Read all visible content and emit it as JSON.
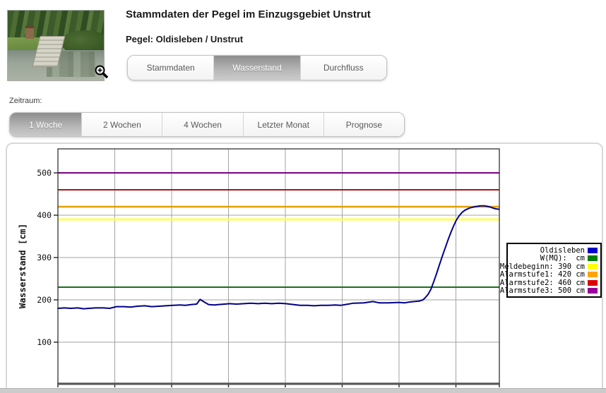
{
  "header": {
    "title": "Stammdaten der Pegel im Einzugsgebiet Unstrut",
    "subtitle": "Pegel: Oldisleben / Unstrut",
    "tabs": [
      {
        "label": "Stammdaten",
        "active": false
      },
      {
        "label": "Wasserstand",
        "active": true
      },
      {
        "label": "Durchfluss",
        "active": false
      }
    ]
  },
  "zeitraum": {
    "label": "Zeitraum:",
    "tabs": [
      {
        "label": "1 Woche",
        "active": true
      },
      {
        "label": "2 Wochen",
        "active": false
      },
      {
        "label": "4 Wochen",
        "active": false
      },
      {
        "label": "Letzter Monat",
        "active": false
      },
      {
        "label": "Prognose",
        "active": false
      }
    ]
  },
  "chart_data": {
    "type": "line",
    "title": "",
    "xlabel": "",
    "ylabel": "Wasserstand [cm]",
    "yticks": [
      100,
      200,
      300,
      400,
      500
    ],
    "ylim": [
      3,
      557
    ],
    "xlim_days": [
      0,
      7.76
    ],
    "x_gridline_interval_days": 1,
    "grid": true,
    "series": [
      {
        "name": "Oldisleben",
        "color": "#000088",
        "points": [
          [
            0.0,
            180
          ],
          [
            0.12,
            181
          ],
          [
            0.22,
            180
          ],
          [
            0.35,
            181
          ],
          [
            0.45,
            179
          ],
          [
            0.55,
            180
          ],
          [
            0.66,
            181
          ],
          [
            0.8,
            181
          ],
          [
            0.91,
            180
          ],
          [
            1.03,
            184
          ],
          [
            1.16,
            184
          ],
          [
            1.28,
            183
          ],
          [
            1.4,
            185
          ],
          [
            1.53,
            186
          ],
          [
            1.65,
            184
          ],
          [
            1.78,
            185
          ],
          [
            1.9,
            186
          ],
          [
            2.02,
            187
          ],
          [
            2.15,
            188
          ],
          [
            2.24,
            187
          ],
          [
            2.35,
            189
          ],
          [
            2.44,
            190
          ],
          [
            2.5,
            201
          ],
          [
            2.56,
            196
          ],
          [
            2.65,
            189
          ],
          [
            2.75,
            188
          ],
          [
            2.83,
            189
          ],
          [
            2.93,
            190
          ],
          [
            3.02,
            191
          ],
          [
            3.14,
            190
          ],
          [
            3.27,
            191
          ],
          [
            3.39,
            192
          ],
          [
            3.52,
            191
          ],
          [
            3.64,
            192
          ],
          [
            3.76,
            191
          ],
          [
            3.89,
            192
          ],
          [
            4.01,
            191
          ],
          [
            4.14,
            189
          ],
          [
            4.26,
            187
          ],
          [
            4.39,
            187
          ],
          [
            4.51,
            186
          ],
          [
            4.63,
            187
          ],
          [
            4.76,
            187
          ],
          [
            4.88,
            188
          ],
          [
            4.97,
            187
          ],
          [
            5.06,
            189
          ],
          [
            5.19,
            192
          ],
          [
            5.38,
            193
          ],
          [
            5.54,
            196
          ],
          [
            5.65,
            193
          ],
          [
            5.81,
            193
          ],
          [
            6.0,
            194
          ],
          [
            6.1,
            193
          ],
          [
            6.19,
            195
          ],
          [
            6.35,
            197
          ],
          [
            6.42,
            200
          ],
          [
            6.46,
            205
          ],
          [
            6.51,
            213
          ],
          [
            6.56,
            225
          ],
          [
            6.61,
            243
          ],
          [
            6.66,
            262
          ],
          [
            6.71,
            283
          ],
          [
            6.76,
            303
          ],
          [
            6.81,
            322
          ],
          [
            6.86,
            341
          ],
          [
            6.91,
            359
          ],
          [
            6.96,
            375
          ],
          [
            7.01,
            389
          ],
          [
            7.06,
            399
          ],
          [
            7.11,
            407
          ],
          [
            7.16,
            412
          ],
          [
            7.24,
            417
          ],
          [
            7.33,
            420
          ],
          [
            7.43,
            422
          ],
          [
            7.5,
            422
          ],
          [
            7.55,
            421
          ],
          [
            7.61,
            419
          ],
          [
            7.65,
            417
          ],
          [
            7.7,
            415
          ],
          [
            7.76,
            414
          ]
        ]
      }
    ],
    "reference_lines": [
      {
        "name": "W(MQ)",
        "value": 230,
        "color": "#1b6e1b",
        "width": 2
      },
      {
        "name": "Meldebeginn",
        "value": 390,
        "color": "#ffff55",
        "width": 3
      },
      {
        "name": "Alarmstufe1",
        "value": 420,
        "color": "#e2a000",
        "width": 2.5
      },
      {
        "name": "Alarmstufe2",
        "value": 460,
        "color": "#aa1515",
        "width": 2
      },
      {
        "name": "Alarmstufe3",
        "value": 500,
        "color": "#7a0080",
        "width": 2
      }
    ],
    "legend": {
      "position": "right",
      "entries": [
        {
          "text": "Oldisleben",
          "color": "#0000cc"
        },
        {
          "text": "W(MQ):  cm",
          "color": "#008000"
        },
        {
          "text": "Meldebeginn: 390 cm",
          "color": "#ffff00"
        },
        {
          "text": "Alarmstufe1: 420 cm",
          "color": "#ffa500"
        },
        {
          "text": "Alarmstufe2: 460 cm",
          "color": "#dd0000"
        },
        {
          "text": "Alarmstufe3: 500 cm",
          "color": "#990099"
        }
      ]
    }
  }
}
